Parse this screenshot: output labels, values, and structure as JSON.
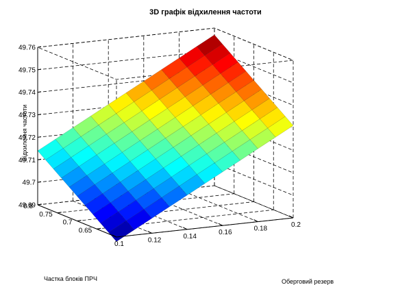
{
  "chart_data": {
    "type": "surface",
    "title": "3D графік відхилення частоти",
    "xlabel": "Оберговий резерв",
    "ylabel": "Частка блоків ПРЧ",
    "zlabel": "Відхилення частоти",
    "x_ticks": [
      "0.1",
      "0.12",
      "0.14",
      "0.16",
      "0.18",
      "0.2"
    ],
    "y_ticks": [
      "0.65",
      "0.7",
      "0.75",
      "0.8"
    ],
    "z_ticks": [
      "49.69",
      "49.7",
      "49.71",
      "49.72",
      "49.73",
      "49.74",
      "49.75",
      "49.76"
    ],
    "xlim": [
      0.1,
      0.2
    ],
    "ylim": [
      0.6,
      0.8
    ],
    "zlim": [
      49.69,
      49.76
    ],
    "x": [
      0.1,
      0.11,
      0.12,
      0.13,
      0.14,
      0.15,
      0.16,
      0.17,
      0.18,
      0.19,
      0.2
    ],
    "y": [
      0.6,
      0.62,
      0.64,
      0.66,
      0.68,
      0.7,
      0.72,
      0.74,
      0.76,
      0.78,
      0.8
    ],
    "z_corners": {
      "x0.1_y0.6": 49.688,
      "x0.2_y0.6": 49.731,
      "x0.1_y0.8": 49.714,
      "x0.2_y0.8": 49.757
    },
    "colormap": "jet",
    "grid": true
  }
}
